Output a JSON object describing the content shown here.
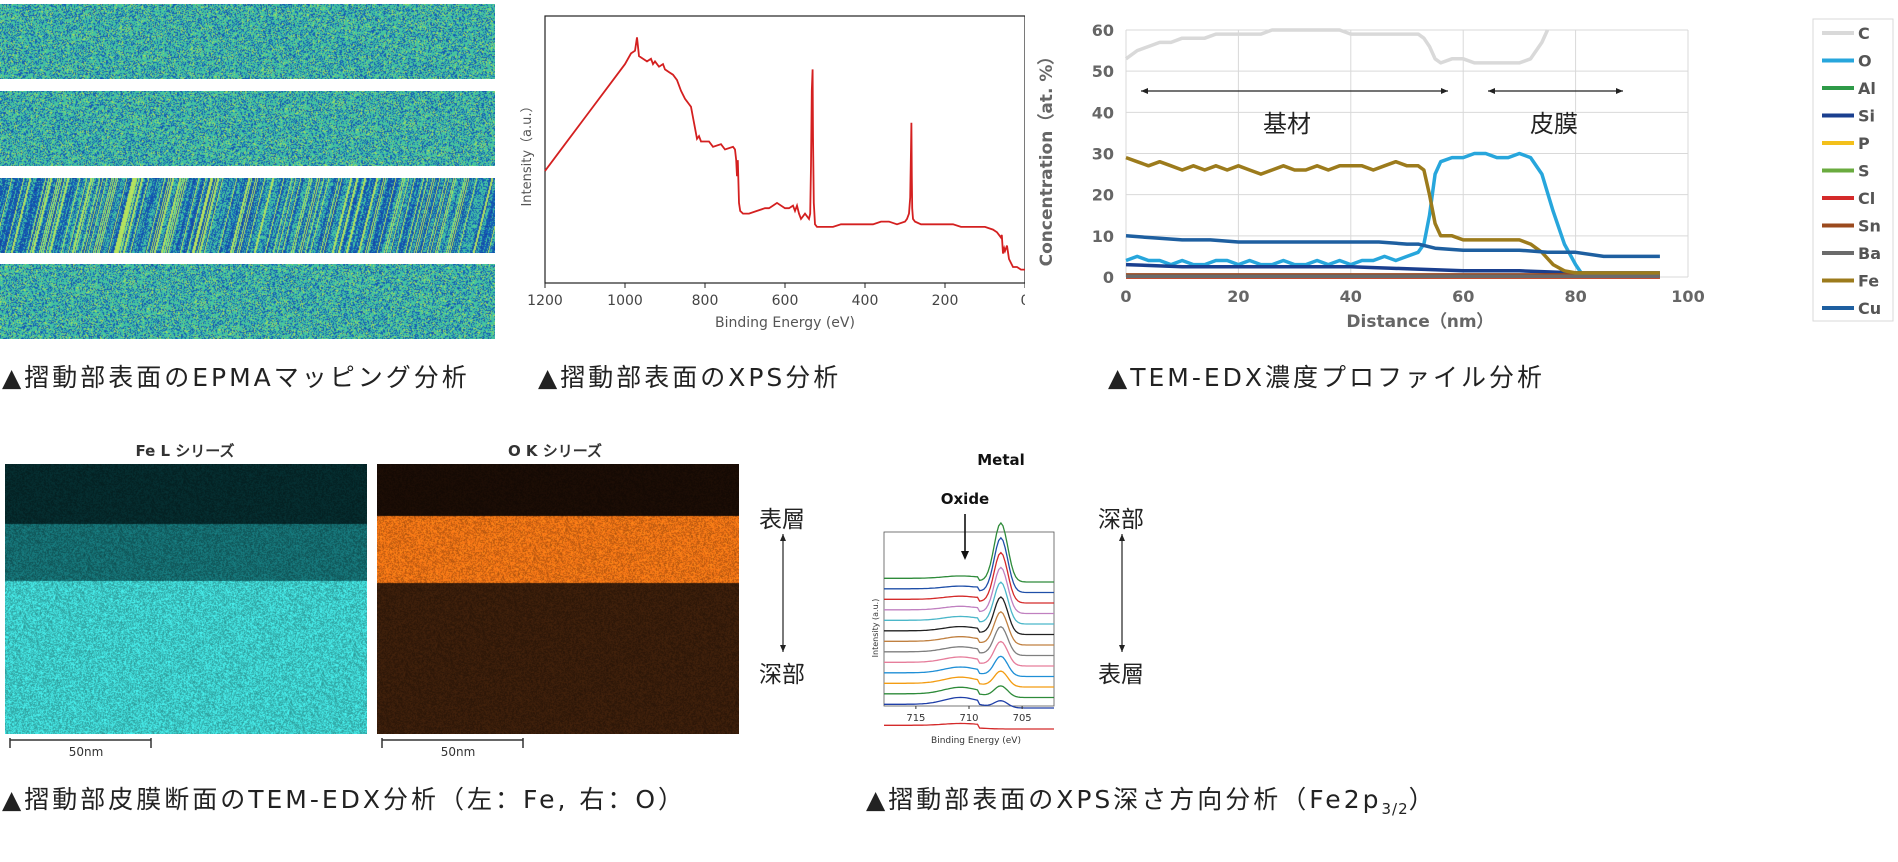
{
  "captions": {
    "epma": "▲摺動部表面のEPMAマッピング分析",
    "xps": "▲摺動部表面のXPS分析",
    "tem_profile": "▲TEM-EDX濃度プロファイル分析",
    "tem_map": "▲摺動部皮膜断面のTEM-EDX分析（左：Fe, 右：O）",
    "xps_depth_prefix": "▲摺動部表面のXPS深さ方向分析（Fe2p",
    "xps_depth_sub": "3/2",
    "xps_depth_suffix": "）"
  },
  "tem_map": {
    "fe_title": "Fe L シリーズ",
    "o_title": "O K シリーズ",
    "scale_fe": "50nm",
    "scale_o": "50nm",
    "side_top": "表層",
    "side_bottom": "深部"
  },
  "xps_depth_side": {
    "top": "深部",
    "bottom": "表層"
  },
  "chart_data": [
    {
      "type": "line",
      "id": "xps-survey",
      "xlabel": "Binding Energy (eV)",
      "ylabel": "Intensity（a.u.）",
      "xlim": [
        1200,
        0
      ],
      "xticks": [
        1200,
        1000,
        800,
        600,
        400,
        200,
        0
      ],
      "series": [
        {
          "color": "#d42020",
          "x": [
            1200,
            1150,
            1100,
            1050,
            1000,
            985,
            975,
            970,
            965,
            955,
            945,
            935,
            930,
            925,
            915,
            905,
            900,
            890,
            880,
            870,
            860,
            850,
            845,
            840,
            835,
            830,
            825,
            820,
            815,
            810,
            790,
            780,
            760,
            750,
            730,
            725,
            722,
            720,
            718,
            715,
            712,
            705,
            700,
            690,
            670,
            650,
            640,
            630,
            620,
            600,
            590,
            580,
            575,
            570,
            565,
            560,
            555,
            550,
            545,
            540,
            537,
            535,
            533,
            531,
            530,
            528,
            525,
            520,
            500,
            480,
            460,
            440,
            420,
            400,
            380,
            360,
            340,
            320,
            300,
            295,
            290,
            287,
            285,
            284,
            283,
            282,
            280,
            275,
            260,
            240,
            220,
            200,
            180,
            160,
            140,
            120,
            100,
            80,
            70,
            65,
            60,
            58,
            55,
            52,
            50,
            45,
            40,
            30,
            20,
            10,
            0
          ],
          "y": [
            42,
            52,
            62,
            72,
            82,
            86,
            87,
            92,
            85,
            84,
            83,
            84,
            82,
            83,
            81,
            82,
            80,
            79,
            78,
            76,
            72,
            69,
            68,
            67,
            66,
            62,
            58,
            54,
            55,
            53,
            53,
            51,
            52,
            50,
            51,
            50,
            46,
            40,
            46,
            30,
            27,
            26,
            26,
            26,
            27,
            28,
            28,
            29,
            30,
            28,
            28,
            29,
            27,
            29,
            26,
            24,
            25,
            26,
            25,
            24,
            26,
            44,
            72,
            80,
            55,
            30,
            22,
            21,
            21,
            21,
            22,
            22,
            22,
            22,
            22,
            23,
            23,
            22,
            23,
            24,
            26,
            32,
            50,
            60,
            40,
            28,
            24,
            23,
            22,
            22,
            22,
            22,
            22,
            21,
            21,
            21,
            21,
            20,
            19,
            18,
            17,
            18,
            11,
            13,
            12,
            14,
            9,
            6,
            6,
            5,
            5
          ]
        }
      ]
    },
    {
      "type": "line",
      "id": "tem-edx-profile",
      "xlabel": "Distance（nm）",
      "ylabel": "Concentration（at. %）",
      "xlim": [
        0,
        100
      ],
      "ylim": [
        0,
        60
      ],
      "xticks": [
        0,
        20,
        40,
        60,
        80,
        100
      ],
      "yticks": [
        0,
        10,
        20,
        30,
        40,
        50,
        60
      ],
      "legend_position": "right",
      "annotations": [
        {
          "text": "基材",
          "x_from": 4,
          "x_to": 50,
          "y": 45
        },
        {
          "text": "皮膜",
          "x_from": 55,
          "x_to": 75,
          "y": 45
        }
      ],
      "series": [
        {
          "name": "C",
          "color": "#d9d9d9",
          "x": [
            0,
            2,
            4,
            6,
            8,
            10,
            12,
            14,
            16,
            18,
            20,
            22,
            24,
            26,
            28,
            30,
            32,
            34,
            36,
            38,
            40,
            42,
            44,
            46,
            48,
            50,
            52,
            53,
            54,
            55,
            56,
            58,
            60,
            62,
            64,
            66,
            68,
            70,
            72,
            74,
            75
          ],
          "y": [
            53,
            55,
            56,
            57,
            57,
            58,
            58,
            58,
            59,
            59,
            59,
            59,
            59,
            60,
            60,
            60,
            60,
            60,
            60,
            60,
            59,
            59,
            59,
            59,
            59,
            59,
            59,
            58,
            56,
            53,
            52,
            53,
            53,
            52,
            52,
            52,
            52,
            52,
            53,
            57,
            60
          ]
        },
        {
          "name": "O",
          "color": "#27a6dc",
          "x": [
            0,
            2,
            4,
            6,
            8,
            10,
            12,
            14,
            16,
            18,
            20,
            22,
            24,
            26,
            28,
            30,
            32,
            34,
            36,
            38,
            40,
            42,
            44,
            46,
            48,
            50,
            52,
            53,
            54,
            55,
            56,
            58,
            60,
            62,
            64,
            66,
            68,
            70,
            72,
            74,
            76,
            78,
            80,
            81
          ],
          "y": [
            4,
            5,
            4,
            4,
            3,
            4,
            3,
            3,
            4,
            4,
            3,
            4,
            3,
            3,
            4,
            3,
            3,
            4,
            3,
            4,
            3,
            4,
            4,
            5,
            4,
            5,
            6,
            8,
            15,
            25,
            28,
            29,
            29,
            30,
            30,
            29,
            29,
            30,
            29,
            25,
            16,
            8,
            3,
            1
          ]
        },
        {
          "name": "Al",
          "color": "#2e9a48",
          "x": [
            0,
            50,
            95
          ],
          "y": [
            0,
            0,
            0
          ]
        },
        {
          "name": "Si",
          "color": "#1a3f8f",
          "x": [
            0,
            10,
            20,
            30,
            40,
            50,
            60,
            70,
            80,
            90,
            95
          ],
          "y": [
            3,
            2.5,
            2.5,
            2.5,
            2.5,
            2,
            1.5,
            1.5,
            1,
            1,
            1
          ]
        },
        {
          "name": "P",
          "color": "#f3c01b",
          "x": [
            0,
            50,
            95
          ],
          "y": [
            0,
            0,
            0
          ]
        },
        {
          "name": "S",
          "color": "#6aab3f",
          "x": [
            0,
            50,
            95
          ],
          "y": [
            0,
            0,
            0
          ]
        },
        {
          "name": "Cl",
          "color": "#d42a2a",
          "x": [
            0,
            50,
            95
          ],
          "y": [
            0,
            0,
            0
          ]
        },
        {
          "name": "Sn",
          "color": "#9b4a1e",
          "x": [
            0,
            50,
            95
          ],
          "y": [
            0.5,
            0.5,
            0.5
          ]
        },
        {
          "name": "Ba",
          "color": "#6b6b6b",
          "x": [
            0,
            50,
            95
          ],
          "y": [
            0.2,
            0.2,
            0.2
          ]
        },
        {
          "name": "Fe",
          "color": "#9c7b1c",
          "x": [
            0,
            2,
            4,
            6,
            8,
            10,
            12,
            14,
            16,
            18,
            20,
            22,
            24,
            26,
            28,
            30,
            32,
            34,
            36,
            38,
            40,
            42,
            44,
            46,
            48,
            50,
            52,
            53,
            54,
            55,
            56,
            58,
            60,
            62,
            64,
            66,
            68,
            70,
            72,
            74,
            76,
            78,
            80,
            85,
            90,
            95
          ],
          "y": [
            29,
            28,
            27,
            28,
            27,
            26,
            27,
            26,
            27,
            26,
            27,
            26,
            25,
            26,
            27,
            26,
            26,
            27,
            26,
            27,
            27,
            27,
            26,
            27,
            28,
            27,
            27,
            26,
            20,
            13,
            10,
            10,
            9,
            9,
            9,
            9,
            9,
            9,
            8,
            6,
            3,
            1.5,
            1,
            1,
            1,
            1
          ]
        },
        {
          "name": "Cu",
          "color": "#1e5fa0",
          "x": [
            0,
            5,
            10,
            15,
            20,
            25,
            30,
            35,
            40,
            45,
            50,
            52,
            55,
            60,
            65,
            70,
            75,
            80,
            85,
            90,
            95
          ],
          "y": [
            10,
            9.5,
            9,
            9,
            8.5,
            8.5,
            8.5,
            8.5,
            8.5,
            8.5,
            8,
            8,
            7,
            6.5,
            6.5,
            6.5,
            6,
            6,
            5,
            5,
            5
          ]
        }
      ]
    },
    {
      "type": "line",
      "id": "xps-depth-fe2p",
      "title_labels": [
        "Metal",
        "Oxide"
      ],
      "xlabel": "Binding Energy (eV)",
      "ylabel": "Intensity (a.u.)",
      "xlim": [
        718,
        702
      ],
      "xticks": [
        715,
        710,
        705
      ],
      "series": [
        {
          "color": "#2e8b3a",
          "offset": 0.0
        },
        {
          "color": "#1f4fa8",
          "offset": 0.07
        },
        {
          "color": "#d42a2a",
          "offset": 0.14
        },
        {
          "color": "#c080c0",
          "offset": 0.21
        },
        {
          "color": "#4bb7c9",
          "offset": 0.28
        },
        {
          "color": "#222222",
          "offset": 0.35
        },
        {
          "color": "#c08040",
          "offset": 0.42
        },
        {
          "color": "#7f7f7f",
          "offset": 0.49
        },
        {
          "color": "#e67d9b",
          "offset": 0.56
        },
        {
          "color": "#1f8fd6",
          "offset": 0.63
        },
        {
          "color": "#f39c12",
          "offset": 0.7
        },
        {
          "color": "#2e8b3a",
          "offset": 0.77
        },
        {
          "color": "#1f3fa8",
          "offset": 0.84
        },
        {
          "color": "#d42a2a",
          "offset": 0.98
        }
      ]
    }
  ]
}
